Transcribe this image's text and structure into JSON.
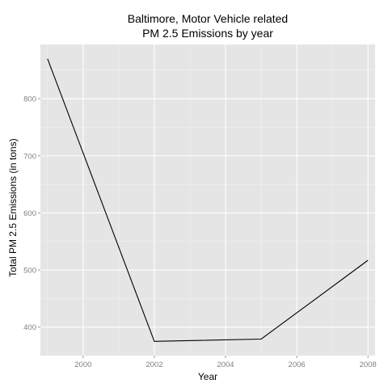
{
  "chart_data": {
    "type": "line",
    "title": [
      "Baltimore, Motor Vehicle related",
      "PM 2.5 Emissions by year"
    ],
    "xlabel": "Year",
    "ylabel": "Total PM 2.5 Emissions (in tons)",
    "x": [
      1999,
      2002,
      2005,
      2008
    ],
    "y": [
      870,
      375,
      379,
      517
    ],
    "xlim": [
      1998.8,
      2008.2
    ],
    "ylim": [
      350,
      895
    ],
    "xticks": [
      2000,
      2002,
      2004,
      2006,
      2008
    ],
    "yticks": [
      400,
      500,
      600,
      700,
      800
    ],
    "grid": true,
    "legend": "none",
    "colors": {
      "panel": "#e5e5e5",
      "grid_major": "#ffffff",
      "grid_minor": "#f2f2f2",
      "line": "#000000",
      "tick_label": "#7f7f7f"
    }
  }
}
